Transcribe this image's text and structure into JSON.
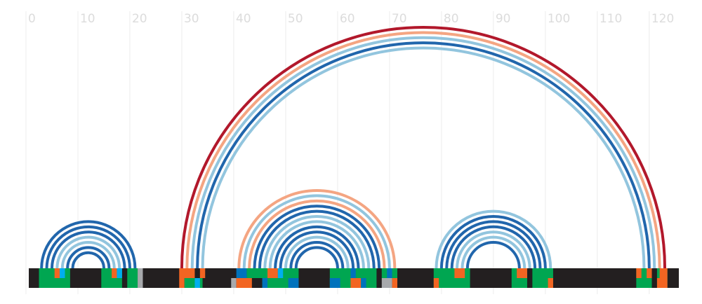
{
  "chart_data": {
    "type": "arc",
    "xlim": [
      0,
      125.7
    ],
    "xticks": [
      0,
      10,
      20,
      30,
      40,
      50,
      60,
      70,
      80,
      90,
      100,
      110,
      120
    ],
    "grid": true,
    "arcs": [
      {
        "from": 3,
        "to": 21,
        "color": "#2166ac"
      },
      {
        "from": 4,
        "to": 20,
        "color": "#2166ac"
      },
      {
        "from": 5,
        "to": 19,
        "color": "#2166ac"
      },
      {
        "from": 6,
        "to": 18,
        "color": "#92c5de"
      },
      {
        "from": 7,
        "to": 17,
        "color": "#92c5de"
      },
      {
        "from": 8,
        "to": 16,
        "color": "#2166ac"
      },
      {
        "from": 9,
        "to": 15,
        "color": "#2166ac"
      },
      {
        "from": 30,
        "to": 123,
        "color": "#b2182b"
      },
      {
        "from": 31,
        "to": 122,
        "color": "#f4a582"
      },
      {
        "from": 32,
        "to": 121,
        "color": "#92c5de"
      },
      {
        "from": 33,
        "to": 120,
        "color": "#2166ac"
      },
      {
        "from": 34,
        "to": 119,
        "color": "#92c5de"
      },
      {
        "from": 41,
        "to": 71,
        "color": "#f4a582"
      },
      {
        "from": 42,
        "to": 70,
        "color": "#92c5de"
      },
      {
        "from": 43,
        "to": 69,
        "color": "#f4a582"
      },
      {
        "from": 44,
        "to": 68,
        "color": "#2166ac"
      },
      {
        "from": 45,
        "to": 67,
        "color": "#2166ac"
      },
      {
        "from": 46,
        "to": 66,
        "color": "#92c5de"
      },
      {
        "from": 47,
        "to": 65,
        "color": "#92c5de"
      },
      {
        "from": 48,
        "to": 64,
        "color": "#2166ac"
      },
      {
        "from": 49,
        "to": 63,
        "color": "#2166ac"
      },
      {
        "from": 50,
        "to": 62,
        "color": "#92c5de"
      },
      {
        "from": 51,
        "to": 61,
        "color": "#2166ac"
      },
      {
        "from": 52,
        "to": 60,
        "color": "#2166ac"
      },
      {
        "from": 79,
        "to": 101,
        "color": "#92c5de"
      },
      {
        "from": 80,
        "to": 100,
        "color": "#2166ac"
      },
      {
        "from": 81,
        "to": 99,
        "color": "#2166ac"
      },
      {
        "from": 82,
        "to": 98,
        "color": "#2166ac"
      },
      {
        "from": 83,
        "to": 97,
        "color": "#92c5de"
      },
      {
        "from": 84,
        "to": 96,
        "color": "#92c5de"
      },
      {
        "from": 85,
        "to": 95,
        "color": "#2166ac"
      }
    ],
    "blocks": [
      {
        "start": 2.5,
        "end": 8.5,
        "color": "#00a651",
        "row": "full"
      },
      {
        "start": 5.5,
        "end": 6.5,
        "color": "#f26522",
        "row": "top"
      },
      {
        "start": 6.5,
        "end": 7.5,
        "color": "#00aeef",
        "row": "top"
      },
      {
        "start": 14.5,
        "end": 18.5,
        "color": "#00a651",
        "row": "full"
      },
      {
        "start": 16.5,
        "end": 17.5,
        "color": "#f26522",
        "row": "top"
      },
      {
        "start": 17.5,
        "end": 18.5,
        "color": "#00aeef",
        "row": "top"
      },
      {
        "start": 19.5,
        "end": 21.5,
        "color": "#00a651",
        "row": "full"
      },
      {
        "start": 21.5,
        "end": 22.5,
        "color": "#a7a9ac",
        "row": "top"
      },
      {
        "start": 21.5,
        "end": 22.5,
        "color": "#a7a9ac",
        "row": "bottom"
      },
      {
        "start": 29.5,
        "end": 32.5,
        "color": "#f26522",
        "row": "top"
      },
      {
        "start": 30.5,
        "end": 34,
        "color": "#00a651",
        "row": "bottom"
      },
      {
        "start": 29.5,
        "end": 30.5,
        "color": "#f26522",
        "row": "bottom"
      },
      {
        "start": 32.5,
        "end": 33.5,
        "color": "#00aeef",
        "row": "bottom"
      },
      {
        "start": 33.5,
        "end": 34.5,
        "color": "#f26522",
        "row": "top"
      },
      {
        "start": 39.5,
        "end": 40.5,
        "color": "#a7a9ac",
        "row": "bottom"
      },
      {
        "start": 40.5,
        "end": 43.5,
        "color": "#f26522",
        "row": "bottom"
      },
      {
        "start": 40.5,
        "end": 42.5,
        "color": "#0072bc",
        "row": "top"
      },
      {
        "start": 42.5,
        "end": 52.5,
        "color": "#00a651",
        "row": "top"
      },
      {
        "start": 45.5,
        "end": 52.5,
        "color": "#00a651",
        "row": "bottom"
      },
      {
        "start": 45.5,
        "end": 46.5,
        "color": "#0072bc",
        "row": "bottom"
      },
      {
        "start": 46.5,
        "end": 48.5,
        "color": "#f26522",
        "row": "top"
      },
      {
        "start": 48.5,
        "end": 49.5,
        "color": "#00aeef",
        "row": "top"
      },
      {
        "start": 50.5,
        "end": 52.5,
        "color": "#0072bc",
        "row": "bottom"
      },
      {
        "start": 58.5,
        "end": 67.5,
        "color": "#00a651",
        "row": "full"
      },
      {
        "start": 58.5,
        "end": 60.5,
        "color": "#0072bc",
        "row": "bottom"
      },
      {
        "start": 62.5,
        "end": 64.5,
        "color": "#f26522",
        "row": "bottom"
      },
      {
        "start": 62.5,
        "end": 63.5,
        "color": "#0072bc",
        "row": "top"
      },
      {
        "start": 64.5,
        "end": 65.5,
        "color": "#0072bc",
        "row": "bottom"
      },
      {
        "start": 68.5,
        "end": 71.5,
        "color": "#00a651",
        "row": "top"
      },
      {
        "start": 69.5,
        "end": 70.5,
        "color": "#0072bc",
        "row": "top"
      },
      {
        "start": 68.5,
        "end": 70.5,
        "color": "#a7a9ac",
        "row": "bottom"
      },
      {
        "start": 70.5,
        "end": 71.5,
        "color": "#f26522",
        "row": "bottom"
      },
      {
        "start": 78.5,
        "end": 85.5,
        "color": "#00a651",
        "row": "full"
      },
      {
        "start": 78.5,
        "end": 79.5,
        "color": "#f26522",
        "row": "bottom"
      },
      {
        "start": 82.5,
        "end": 84.5,
        "color": "#f26522",
        "row": "top"
      },
      {
        "start": 93.5,
        "end": 96.5,
        "color": "#00a651",
        "row": "full"
      },
      {
        "start": 94.5,
        "end": 96.5,
        "color": "#f26522",
        "row": "top"
      },
      {
        "start": 97.5,
        "end": 101.5,
        "color": "#00a651",
        "row": "full"
      },
      {
        "start": 100.5,
        "end": 101.5,
        "color": "#f26522",
        "row": "bottom"
      },
      {
        "start": 117.5,
        "end": 120.5,
        "color": "#00a651",
        "row": "full"
      },
      {
        "start": 117.5,
        "end": 118.5,
        "color": "#f26522",
        "row": "top"
      },
      {
        "start": 119.5,
        "end": 120.5,
        "color": "#f26522",
        "row": "top"
      },
      {
        "start": 121.5,
        "end": 123.5,
        "color": "#00a651",
        "row": "full"
      },
      {
        "start": 121.5,
        "end": 123.5,
        "color": "#f26522",
        "row": "bottom"
      },
      {
        "start": 122,
        "end": 123.5,
        "color": "#f26522",
        "row": "top"
      }
    ]
  }
}
